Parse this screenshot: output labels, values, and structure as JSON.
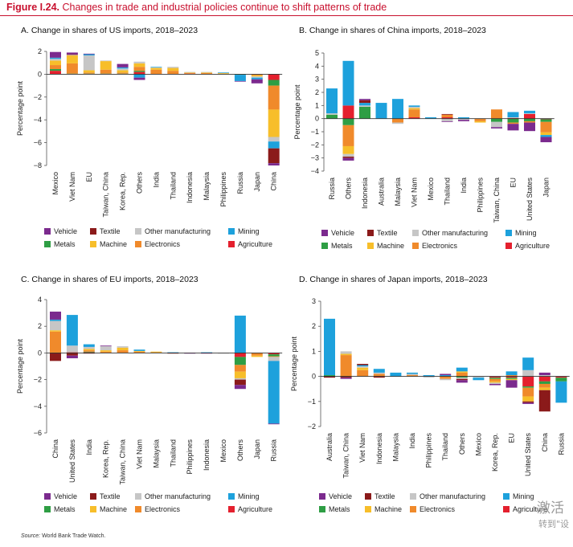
{
  "figure": {
    "label": "Figure I.24.",
    "title": "Changes in trade and industrial policies continue to shift patterns of trade",
    "source_label": "Source:",
    "source_text": "World Bank Trade Watch."
  },
  "watermark": {
    "line1": "激活",
    "line2": "转到\"设"
  },
  "colors": {
    "Vehicle": "#7b2a8e",
    "Textile": "#8b1a1a",
    "Other manufacturing": "#c6c6c6",
    "Mining": "#1da1dc",
    "Metals": "#2e9e44",
    "Machine": "#f7be2a",
    "Electronics": "#f08a2b",
    "Agriculture": "#e4202e"
  },
  "legend_order": [
    "Vehicle",
    "Textile",
    "Other manufacturing",
    "Mining",
    "Metals",
    "Machine",
    "Electronics",
    "Agriculture"
  ],
  "chart_data": [
    {
      "id": "A",
      "type": "bar",
      "stacked": true,
      "title": "A. Change in shares of US imports, 2018–2023",
      "ylabel": "Percentage point",
      "ylim": [
        -8,
        2
      ],
      "yticks": [
        2,
        0,
        -2,
        -4,
        -6,
        -8
      ],
      "categories": [
        "Mexico",
        "Viet Nam",
        "EU",
        "Taiwan, China",
        "Korea, Rep.",
        "Others",
        "India",
        "Thailand",
        "Indonesia",
        "Malaysia",
        "Philippines",
        "Russia",
        "Japan",
        "China"
      ],
      "series": [
        {
          "name": "Agriculture",
          "values": [
            0.3,
            0,
            0,
            0,
            0,
            0.2,
            0,
            0,
            0.05,
            0,
            0,
            0,
            0,
            -0.5
          ]
        },
        {
          "name": "Metals",
          "values": [
            0.15,
            0.05,
            0.05,
            0.05,
            0.05,
            0.1,
            0,
            0,
            0,
            0,
            0,
            -0.05,
            0,
            -0.5
          ]
        },
        {
          "name": "Electronics",
          "values": [
            0.35,
            0.9,
            0.1,
            0.35,
            0.1,
            0.35,
            0.4,
            0.3,
            0.05,
            0.1,
            0.05,
            0,
            -0.1,
            -2.1
          ]
        },
        {
          "name": "Machine",
          "values": [
            0.4,
            0.7,
            0.2,
            0.75,
            0.2,
            0.3,
            0.15,
            0.25,
            0.05,
            0.05,
            0.05,
            0,
            -0.1,
            -2.4
          ]
        },
        {
          "name": "Other manufacturing",
          "values": [
            0.15,
            0.05,
            1.3,
            0.05,
            0.15,
            0.15,
            0.05,
            0.1,
            0.05,
            0.05,
            0,
            0,
            -0.1,
            -0.4
          ]
        },
        {
          "name": "Mining",
          "values": [
            0.1,
            0,
            0.1,
            0,
            0.1,
            -0.3,
            0.05,
            0,
            0,
            0,
            0.05,
            -0.55,
            -0.15,
            -0.6
          ]
        },
        {
          "name": "Textile",
          "values": [
            0,
            0.05,
            0,
            0,
            0,
            0,
            0,
            0,
            0,
            0,
            0,
            0,
            0,
            -1.3
          ]
        },
        {
          "name": "Vehicle",
          "values": [
            0.5,
            0.15,
            0.05,
            0,
            0.3,
            -0.2,
            0,
            0,
            0,
            0,
            0,
            -0.05,
            -0.35,
            -0.2
          ]
        }
      ]
    },
    {
      "id": "B",
      "type": "bar",
      "stacked": true,
      "title": "B. Change in shares of China imports, 2018–2023",
      "ylabel": "Percentage point",
      "ylim": [
        -4,
        5
      ],
      "yticks": [
        5,
        4,
        3,
        2,
        1,
        0,
        -1,
        -2,
        -3,
        -4
      ],
      "categories": [
        "Russia",
        "Others",
        "Indonesia",
        "Australia",
        "Malaysia",
        "Viet Nam",
        "Mexico",
        "Thailand",
        "India",
        "Philippines",
        "Taiwan, China",
        "EU",
        "United States",
        "Japan"
      ],
      "series": [
        {
          "name": "Agriculture",
          "values": [
            0,
            1,
            0,
            0,
            0,
            0.1,
            0,
            0.1,
            0,
            0,
            0,
            0.05,
            0.35,
            -0.05
          ]
        },
        {
          "name": "Metals",
          "values": [
            0.3,
            -0.5,
            0.9,
            0,
            0,
            0,
            0,
            0,
            0,
            0,
            -0.25,
            -0.3,
            -0.2,
            -0.2
          ]
        },
        {
          "name": "Electronics",
          "values": [
            0,
            -1.6,
            0,
            0,
            -0.3,
            0.6,
            0,
            0.2,
            0,
            -0.2,
            0.7,
            -0.1,
            -0.1,
            -0.8
          ]
        },
        {
          "name": "Machine",
          "values": [
            0,
            -0.6,
            0,
            0,
            0,
            0.1,
            0,
            0,
            0,
            -0.1,
            0,
            0,
            0,
            -0.2
          ]
        },
        {
          "name": "Other manufacturing",
          "values": [
            0.1,
            -0.2,
            0.1,
            0,
            -0.1,
            0.1,
            0,
            -0.2,
            -0.1,
            0,
            -0.4,
            0.05,
            0.05,
            0
          ]
        },
        {
          "name": "Mining",
          "values": [
            1.9,
            3.4,
            0.2,
            1.2,
            1.5,
            0.1,
            0.1,
            0,
            0.1,
            0,
            0,
            0.4,
            0.2,
            -0.15
          ]
        },
        {
          "name": "Textile",
          "values": [
            0,
            -0.1,
            0.2,
            0,
            0,
            0,
            0,
            0.05,
            0,
            0,
            0,
            0,
            0,
            0
          ]
        },
        {
          "name": "Vehicle",
          "values": [
            0,
            -0.2,
            0.1,
            0,
            0,
            0,
            0,
            -0.05,
            -0.1,
            0,
            -0.1,
            -0.5,
            -0.65,
            -0.4
          ]
        }
      ]
    },
    {
      "id": "C",
      "type": "bar",
      "stacked": true,
      "title": "C. Change in shares of EU imports, 2018–2023",
      "ylabel": "Percentage point",
      "ylim": [
        -6,
        4
      ],
      "yticks": [
        4,
        2,
        0,
        -2,
        -4,
        -6
      ],
      "categories": [
        "China",
        "United States",
        "India",
        "Korea, Rep.",
        "Taiwan, China",
        "Viet Nam",
        "Malaysia",
        "Thailand",
        "Philippines",
        "Indonesia",
        "Mexico",
        "Others",
        "Japan",
        "Russia"
      ],
      "series": [
        {
          "name": "Agriculture",
          "values": [
            0,
            0.05,
            0.05,
            0,
            0,
            0,
            0,
            0,
            0,
            0,
            0,
            -0.3,
            0,
            -0.1
          ]
        },
        {
          "name": "Metals",
          "values": [
            0,
            0,
            0.05,
            0,
            0,
            0,
            0,
            0,
            0,
            0,
            0,
            -0.6,
            0,
            -0.15
          ]
        },
        {
          "name": "Electronics",
          "values": [
            1.6,
            0,
            0.1,
            0.1,
            0.2,
            0.1,
            0.05,
            0,
            0,
            0,
            0,
            -0.5,
            -0.2,
            -0.05
          ]
        },
        {
          "name": "Machine",
          "values": [
            0.1,
            0,
            0.1,
            0.1,
            0.2,
            0.05,
            0.05,
            0,
            0,
            0,
            0,
            -0.5,
            -0.1,
            0
          ]
        },
        {
          "name": "Other manufacturing",
          "values": [
            0.7,
            0.5,
            0.15,
            0.3,
            0.1,
            0,
            0,
            0,
            0,
            0,
            -0.05,
            -0.1,
            0,
            -0.3
          ]
        },
        {
          "name": "Mining",
          "values": [
            0.1,
            2.3,
            0.2,
            0,
            0,
            0.1,
            0,
            0.05,
            0,
            0.05,
            0,
            2.8,
            0,
            -4.7
          ]
        },
        {
          "name": "Textile",
          "values": [
            -0.6,
            -0.2,
            -0.05,
            0,
            0,
            0,
            0,
            -0.05,
            0,
            0,
            0,
            -0.4,
            0,
            0
          ]
        },
        {
          "name": "Vehicle",
          "values": [
            0.6,
            -0.2,
            0,
            0.05,
            0,
            0,
            0,
            0,
            -0.05,
            -0.05,
            0,
            -0.3,
            0,
            -0.05
          ]
        }
      ]
    },
    {
      "id": "D",
      "type": "bar",
      "stacked": true,
      "title": "D. Change in shares of Japan imports, 2018–2023",
      "ylabel": "Percentage point",
      "ylim": [
        -2,
        3
      ],
      "yticks": [
        3,
        2,
        1,
        0,
        -1,
        -2
      ],
      "categories": [
        "Australia",
        "Taiwan, China",
        "Viet Nam",
        "Indonesia",
        "Malaysia",
        "India",
        "Philippines",
        "Thailand",
        "Others",
        "Mexico",
        "Korea, Rep.",
        "EU",
        "United States",
        "China",
        "Russia"
      ],
      "series": [
        {
          "name": "Agriculture",
          "values": [
            0,
            0,
            0,
            0,
            0,
            0,
            0,
            0,
            0,
            0,
            -0.05,
            -0.05,
            -0.4,
            -0.2,
            -0.05
          ]
        },
        {
          "name": "Metals",
          "values": [
            0.05,
            0,
            0,
            0,
            0,
            0,
            0,
            0,
            -0.05,
            0,
            -0.05,
            -0.05,
            -0.05,
            -0.1,
            -0.15
          ]
        },
        {
          "name": "Electronics",
          "values": [
            0,
            0.85,
            0.25,
            0.1,
            0,
            0.05,
            0,
            -0.1,
            0.15,
            0,
            -0.1,
            0.05,
            -0.35,
            -0.15,
            0
          ]
        },
        {
          "name": "Machine",
          "values": [
            0,
            0.05,
            0.1,
            0,
            0,
            0,
            0,
            0,
            0.05,
            0,
            -0.05,
            -0.05,
            -0.2,
            -0.1,
            0
          ]
        },
        {
          "name": "Other manufacturing",
          "values": [
            0,
            0.1,
            0.05,
            0.05,
            0,
            0.05,
            -0.05,
            -0.05,
            -0.05,
            -0.05,
            -0.05,
            0,
            0.25,
            0.05,
            0
          ]
        },
        {
          "name": "Mining",
          "values": [
            2.25,
            0,
            0.05,
            0.15,
            0.15,
            0.05,
            0.05,
            0.05,
            0.15,
            -0.1,
            0,
            0.15,
            0.5,
            0,
            -0.85
          ]
        },
        {
          "name": "Textile",
          "values": [
            -0.05,
            -0.05,
            0.05,
            -0.05,
            0,
            0,
            0,
            0,
            -0.05,
            0,
            0,
            0,
            -0.05,
            -0.85,
            0
          ]
        },
        {
          "name": "Vehicle",
          "values": [
            0,
            -0.05,
            0,
            0,
            0,
            0,
            0,
            0.05,
            -0.1,
            0,
            -0.05,
            -0.3,
            -0.05,
            0.1,
            0
          ]
        }
      ]
    }
  ]
}
